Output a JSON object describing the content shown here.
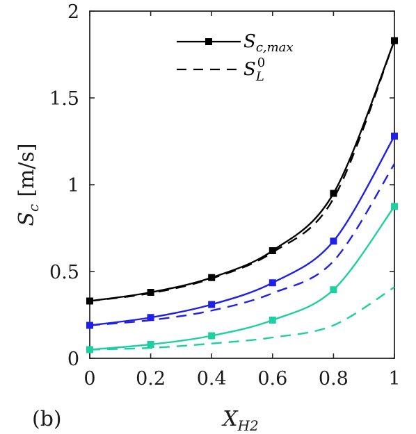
{
  "panel_label": "(b)",
  "chart_data": {
    "type": "line",
    "xlabel_main": "X",
    "xlabel_sub": "H2",
    "ylabel_main": "S",
    "ylabel_sub": "c",
    "ylabel_unit": "[m/s]",
    "xlim": [
      0,
      1
    ],
    "ylim": [
      0,
      2
    ],
    "x_ticks": [
      "0",
      "0.2",
      "0.4",
      "0.6",
      "0.8",
      "1"
    ],
    "y_ticks": [
      "0",
      "0.5",
      "1",
      "1.5",
      "2"
    ],
    "grid": false,
    "legend_position": "top-center",
    "legend": [
      {
        "main": "S",
        "sub": "c,max",
        "style": "solid-square"
      },
      {
        "main": "S",
        "sub": "L",
        "sup": "0",
        "style": "dashed"
      }
    ],
    "x": [
      0,
      0.2,
      0.4,
      0.6,
      0.8,
      1
    ],
    "series": [
      {
        "color": "#000000",
        "style": "solid",
        "markers": true,
        "values": [
          0.33,
          0.38,
          0.465,
          0.62,
          0.95,
          1.83
        ]
      },
      {
        "color": "#000000",
        "style": "dashed",
        "markers": false,
        "values": [
          0.33,
          0.375,
          0.46,
          0.61,
          0.92,
          1.83
        ]
      },
      {
        "color": "#1f1fe6",
        "style": "solid",
        "markers": true,
        "values": [
          0.19,
          0.235,
          0.31,
          0.435,
          0.675,
          1.28
        ]
      },
      {
        "color": "#1f1fe6",
        "style": "dashed",
        "markers": false,
        "values": [
          0.19,
          0.22,
          0.275,
          0.375,
          0.56,
          1.12
        ]
      },
      {
        "color": "#1ecfa0",
        "style": "solid",
        "markers": true,
        "values": [
          0.05,
          0.08,
          0.13,
          0.22,
          0.395,
          0.875
        ]
      },
      {
        "color": "#1ecfa0",
        "style": "dashed",
        "markers": false,
        "values": [
          0.05,
          0.06,
          0.085,
          0.12,
          0.19,
          0.41
        ]
      }
    ]
  }
}
